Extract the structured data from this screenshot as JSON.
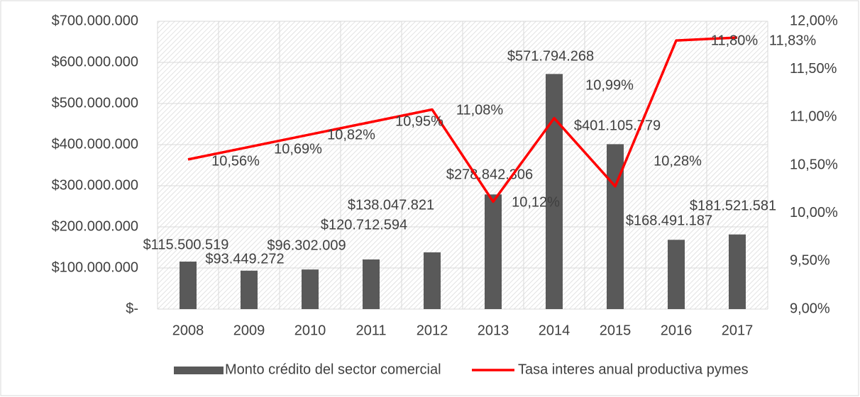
{
  "chart_data": {
    "type": "bar_line",
    "categories": [
      "2008",
      "2009",
      "2010",
      "2011",
      "2012",
      "2013",
      "2014",
      "2015",
      "2016",
      "2017"
    ],
    "series": [
      {
        "name": "Monto crédito del sector comercial",
        "type": "bar",
        "color": "#595959",
        "values": [
          115500519,
          93449272,
          96302009,
          120712594,
          138047821,
          278842306,
          571794268,
          401105779,
          168491187,
          181521581
        ],
        "value_labels": [
          "$115.500.519",
          "$93.449.272",
          "$96.302.009",
          "$120.712.594",
          "$138.047.821",
          "$278.842.306",
          "$571.794.268",
          "$401.105.779",
          "$168.491.187",
          "$181.521.581"
        ]
      },
      {
        "name": "Tasa interes anual productiva pymes",
        "type": "line",
        "axis": "y2",
        "color": "#ff0000",
        "values": [
          10.56,
          10.69,
          10.82,
          10.95,
          11.08,
          10.12,
          10.99,
          10.28,
          11.8,
          11.83
        ],
        "value_labels": [
          "10,56%",
          "10,69%",
          "10,82%",
          "10,95%",
          "11,08%",
          "10,12%",
          "10,99%",
          "10,28%",
          "11,80%",
          "11,83%"
        ]
      }
    ],
    "ylim": [
      0,
      700000000
    ],
    "yticks": [
      {
        "value": 0,
        "label": "$-"
      },
      {
        "value": 100000000,
        "label": "$100.000.000"
      },
      {
        "value": 200000000,
        "label": "$200.000.000"
      },
      {
        "value": 300000000,
        "label": "$300.000.000"
      },
      {
        "value": 400000000,
        "label": "$400.000.000"
      },
      {
        "value": 500000000,
        "label": "$500.000.000"
      },
      {
        "value": 600000000,
        "label": "$600.000.000"
      },
      {
        "value": 700000000,
        "label": "$700.000.000"
      }
    ],
    "y2lim": [
      9,
      12
    ],
    "y2ticks": [
      {
        "value": 9,
        "label": "9,00%"
      },
      {
        "value": 9.5,
        "label": "9,50%"
      },
      {
        "value": 10,
        "label": "10,00%"
      },
      {
        "value": 10.5,
        "label": "10,50%"
      },
      {
        "value": 11,
        "label": "11,00%"
      },
      {
        "value": 11.5,
        "label": "11,50%"
      },
      {
        "value": 12,
        "label": "12,00%"
      }
    ],
    "grid": true,
    "legend": "bottom"
  }
}
